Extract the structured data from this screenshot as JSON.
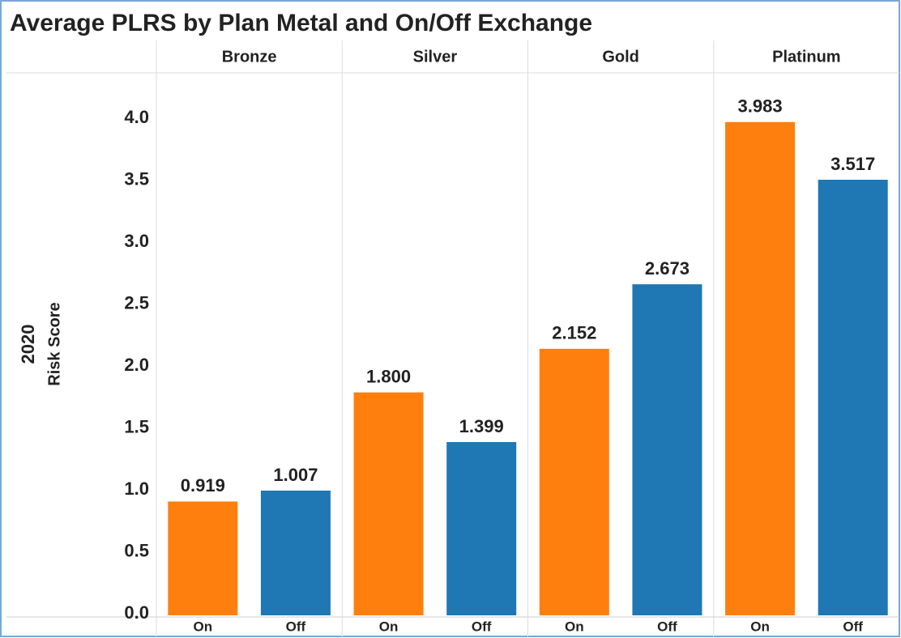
{
  "chart_data": {
    "type": "grouped_bar",
    "title": "Average PLRS by Plan Metal and On/Off Exchange",
    "y_label": [
      "2020",
      "Risk Score"
    ],
    "groups": [
      "Bronze",
      "Silver",
      "Gold",
      "Platinum"
    ],
    "series": [
      {
        "name": "On",
        "color": "#ff7f0e",
        "values": [
          0.919,
          1.8,
          2.152,
          3.983
        ],
        "value_labels": [
          "0.919",
          "1.800",
          "2.152",
          "3.983"
        ]
      },
      {
        "name": "Off",
        "color": "#1f77b4",
        "values": [
          1.007,
          1.399,
          2.673,
          3.517
        ],
        "value_labels": [
          "1.007",
          "1.399",
          "2.673",
          "3.517"
        ]
      }
    ],
    "ylim": [
      0,
      4.38
    ],
    "yticks": [
      {
        "value": 0,
        "label": "0.0"
      },
      0.5,
      {
        "value": 1,
        "label": "1.0"
      },
      1.5,
      {
        "value": 2,
        "label": "2.0"
      },
      2.5,
      {
        "value": 3,
        "label": "3.0"
      },
      3.5,
      {
        "value": 4,
        "label": "4.0"
      }
    ],
    "grid": false
  }
}
